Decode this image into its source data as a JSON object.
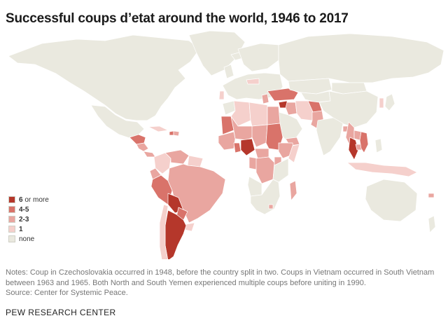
{
  "title": "Successful coups d’etat around the world, 1946 to 2017",
  "legend": {
    "items": [
      {
        "bold": "6",
        "rest": " or more",
        "color": "#b5372b"
      },
      {
        "bold": "4-5",
        "rest": "",
        "color": "#d9736a"
      },
      {
        "bold": "2-3",
        "rest": "",
        "color": "#e9a6a0"
      },
      {
        "bold": "1",
        "rest": "",
        "color": "#f5d0cc"
      },
      {
        "bold": "",
        "rest": "none",
        "color": "#eae9df"
      }
    ]
  },
  "notes": {
    "line1": "Notes: Coup in Czechoslovakia occurred in 1948, before the country split in two. Coups in Vietnam occurred in South Vietnam between 1963 and 1965. Both North and South Yemen experienced multiple coups before uniting in 1990.",
    "line2": "Source: Center for Systemic Peace."
  },
  "source_label": "PEW RESEARCH CENTER",
  "map": {
    "regions": [
      {
        "name": "north-america",
        "category": "none"
      },
      {
        "name": "greenland",
        "category": "none"
      },
      {
        "name": "mexico",
        "category": "none"
      },
      {
        "name": "guatemala-honduras",
        "category": "4-5"
      },
      {
        "name": "el-salvador-nicaragua",
        "category": "2-3"
      },
      {
        "name": "panama",
        "category": "2-3"
      },
      {
        "name": "cuba",
        "category": "1"
      },
      {
        "name": "haiti",
        "category": "4-5"
      },
      {
        "name": "dominican-republic",
        "category": "2-3"
      },
      {
        "name": "colombia",
        "category": "1"
      },
      {
        "name": "venezuela",
        "category": "2-3"
      },
      {
        "name": "guyana-suriname",
        "category": "1"
      },
      {
        "name": "ecuador",
        "category": "2-3"
      },
      {
        "name": "peru",
        "category": "4-5"
      },
      {
        "name": "brazil",
        "category": "2-3"
      },
      {
        "name": "bolivia",
        "category": "6+"
      },
      {
        "name": "paraguay",
        "category": "4-5"
      },
      {
        "name": "uruguay",
        "category": "1"
      },
      {
        "name": "argentina",
        "category": "6+"
      },
      {
        "name": "chile",
        "category": "1"
      },
      {
        "name": "europe-west",
        "category": "none"
      },
      {
        "name": "scandinavia",
        "category": "none"
      },
      {
        "name": "iceland",
        "category": "none"
      },
      {
        "name": "uk",
        "category": "none"
      },
      {
        "name": "portugal",
        "category": "1"
      },
      {
        "name": "greece",
        "category": "2-3"
      },
      {
        "name": "czechoslovakia",
        "category": "1"
      },
      {
        "name": "turkey",
        "category": "4-5"
      },
      {
        "name": "russia",
        "category": "none"
      },
      {
        "name": "kazakhstan",
        "category": "none"
      },
      {
        "name": "central-asia",
        "category": "none"
      },
      {
        "name": "morocco",
        "category": "none"
      },
      {
        "name": "algeria",
        "category": "1"
      },
      {
        "name": "libya",
        "category": "1"
      },
      {
        "name": "egypt",
        "category": "2-3"
      },
      {
        "name": "sudan",
        "category": "4-5"
      },
      {
        "name": "mauritania",
        "category": "4-5"
      },
      {
        "name": "mali-niger",
        "category": "2-3"
      },
      {
        "name": "chad",
        "category": "2-3"
      },
      {
        "name": "west-africa-small",
        "category": "2-3"
      },
      {
        "name": "ghana",
        "category": "4-5"
      },
      {
        "name": "nigeria",
        "category": "6+"
      },
      {
        "name": "car",
        "category": "2-3"
      },
      {
        "name": "ethiopia",
        "category": "2-3"
      },
      {
        "name": "somalia",
        "category": "1"
      },
      {
        "name": "uganda",
        "category": "2-3"
      },
      {
        "name": "drc",
        "category": "2-3"
      },
      {
        "name": "congo",
        "category": "2-3"
      },
      {
        "name": "east-africa",
        "category": "none"
      },
      {
        "name": "angola",
        "category": "none"
      },
      {
        "name": "southern-africa",
        "category": "none"
      },
      {
        "name": "lesotho",
        "category": "2-3"
      },
      {
        "name": "madagascar",
        "category": "2-3"
      },
      {
        "name": "syria",
        "category": "6+"
      },
      {
        "name": "iraq",
        "category": "2-3"
      },
      {
        "name": "iran",
        "category": "1"
      },
      {
        "name": "saudi-arabia",
        "category": "none"
      },
      {
        "name": "yemen",
        "category": "2-3"
      },
      {
        "name": "afghanistan",
        "category": "4-5"
      },
      {
        "name": "pakistan",
        "category": "2-3"
      },
      {
        "name": "india",
        "category": "none"
      },
      {
        "name": "bangladesh",
        "category": "2-3"
      },
      {
        "name": "myanmar",
        "category": "2-3"
      },
      {
        "name": "thailand",
        "category": "6+"
      },
      {
        "name": "laos",
        "category": "2-3"
      },
      {
        "name": "cambodia",
        "category": "2-3"
      },
      {
        "name": "vietnam",
        "category": "4-5"
      },
      {
        "name": "china",
        "category": "none"
      },
      {
        "name": "mongolia",
        "category": "none"
      },
      {
        "name": "korea",
        "category": "1"
      },
      {
        "name": "japan",
        "category": "none"
      },
      {
        "name": "philippines",
        "category": "none"
      },
      {
        "name": "indonesia",
        "category": "1"
      },
      {
        "name": "fiji",
        "category": "2-3"
      },
      {
        "name": "australia",
        "category": "none"
      },
      {
        "name": "new-zealand",
        "category": "none"
      }
    ]
  }
}
